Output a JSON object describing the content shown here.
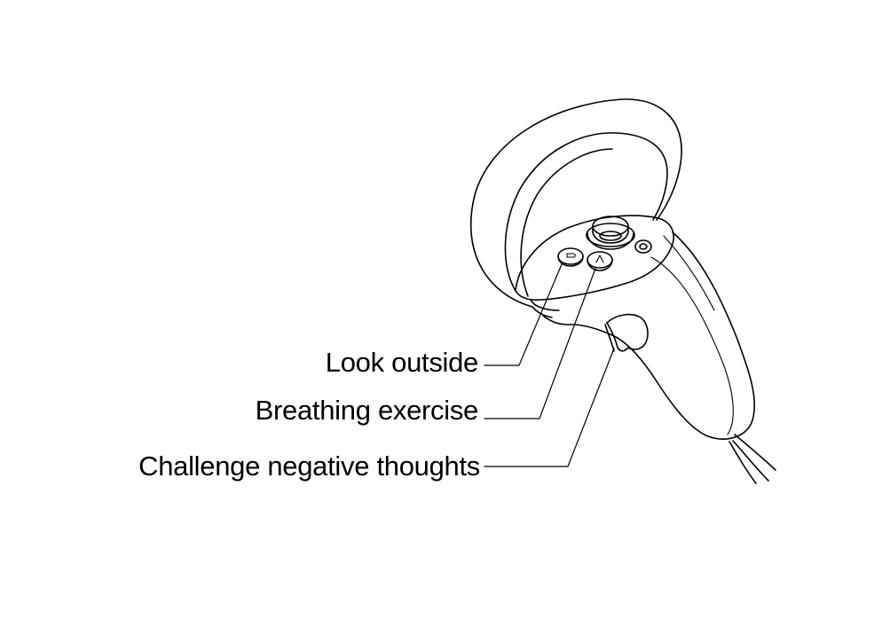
{
  "diagram": {
    "subject": "vr-controller",
    "callouts": [
      {
        "id": "b-button",
        "label": "Look outside"
      },
      {
        "id": "a-button",
        "label": "Breathing exercise"
      },
      {
        "id": "trigger",
        "label": "Challenge negative thoughts"
      }
    ]
  },
  "colors": {
    "line": "#000000",
    "background": "#ffffff"
  }
}
